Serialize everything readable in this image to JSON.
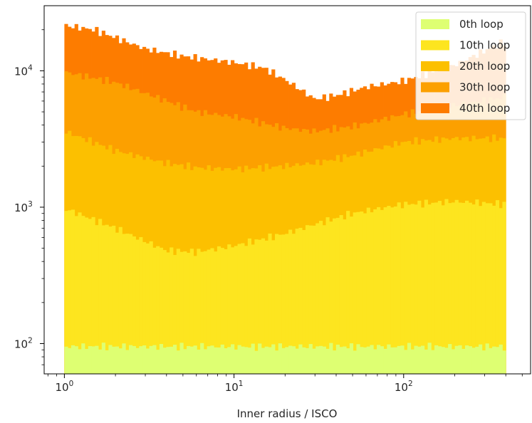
{
  "chart_data": {
    "type": "histogram",
    "stacked": true,
    "bins": 130,
    "xscale": "log",
    "yscale": "log",
    "xlim": [
      0.76,
      560
    ],
    "ylim": [
      60,
      30000
    ],
    "xlabel": "Inner radius / ISCO",
    "ylabel": "",
    "x_range": [
      1,
      400
    ],
    "x_ticks": [
      {
        "value": 1,
        "base": "10",
        "exp": "0"
      },
      {
        "value": 10,
        "base": "10",
        "exp": "1"
      },
      {
        "value": 100,
        "base": "10",
        "exp": "2"
      }
    ],
    "y_ticks": [
      {
        "value": 100,
        "base": "10",
        "exp": "2"
      },
      {
        "value": 1000,
        "base": "10",
        "exp": "3"
      },
      {
        "value": 10000,
        "base": "10",
        "exp": "4"
      }
    ],
    "legend_position": "top-right",
    "grid": false,
    "series": [
      {
        "name": "0th loop",
        "color": "#deff72",
        "x": [
          1,
          2,
          4,
          10,
          30,
          100,
          200,
          400
        ],
        "y": [
          95,
          95,
          95,
          95,
          95,
          95,
          95,
          95
        ]
      },
      {
        "name": "10th loop",
        "color": "#fde51f",
        "x": [
          1,
          2,
          4,
          6,
          10,
          20,
          30,
          50,
          100,
          200,
          400
        ],
        "y": [
          980,
          700,
          480,
          470,
          520,
          640,
          750,
          900,
          1050,
          1100,
          1050
        ]
      },
      {
        "name": "20th loop",
        "color": "#fcc000",
        "x": [
          1,
          2,
          4,
          6,
          10,
          20,
          30,
          50,
          100,
          200,
          400
        ],
        "y": [
          3600,
          2600,
          2100,
          1950,
          1900,
          2000,
          2100,
          2400,
          3000,
          3200,
          3200
        ]
      },
      {
        "name": "30th loop",
        "color": "#fca000",
        "x": [
          1,
          2,
          4,
          6,
          10,
          20,
          30,
          50,
          100,
          200,
          400
        ],
        "y": [
          9800,
          8200,
          6000,
          5000,
          4600,
          3800,
          3600,
          3900,
          4800,
          5600,
          6400
        ]
      },
      {
        "name": "40th loop",
        "color": "#fd7c00",
        "x": [
          1,
          1.5,
          2,
          3,
          5,
          10,
          15,
          20,
          30,
          40,
          60,
          100,
          200,
          300,
          400
        ],
        "y": [
          21500,
          20000,
          17500,
          14500,
          12800,
          11500,
          10500,
          8600,
          6200,
          6600,
          7600,
          8400,
          11000,
          14000,
          16500
        ]
      }
    ]
  }
}
